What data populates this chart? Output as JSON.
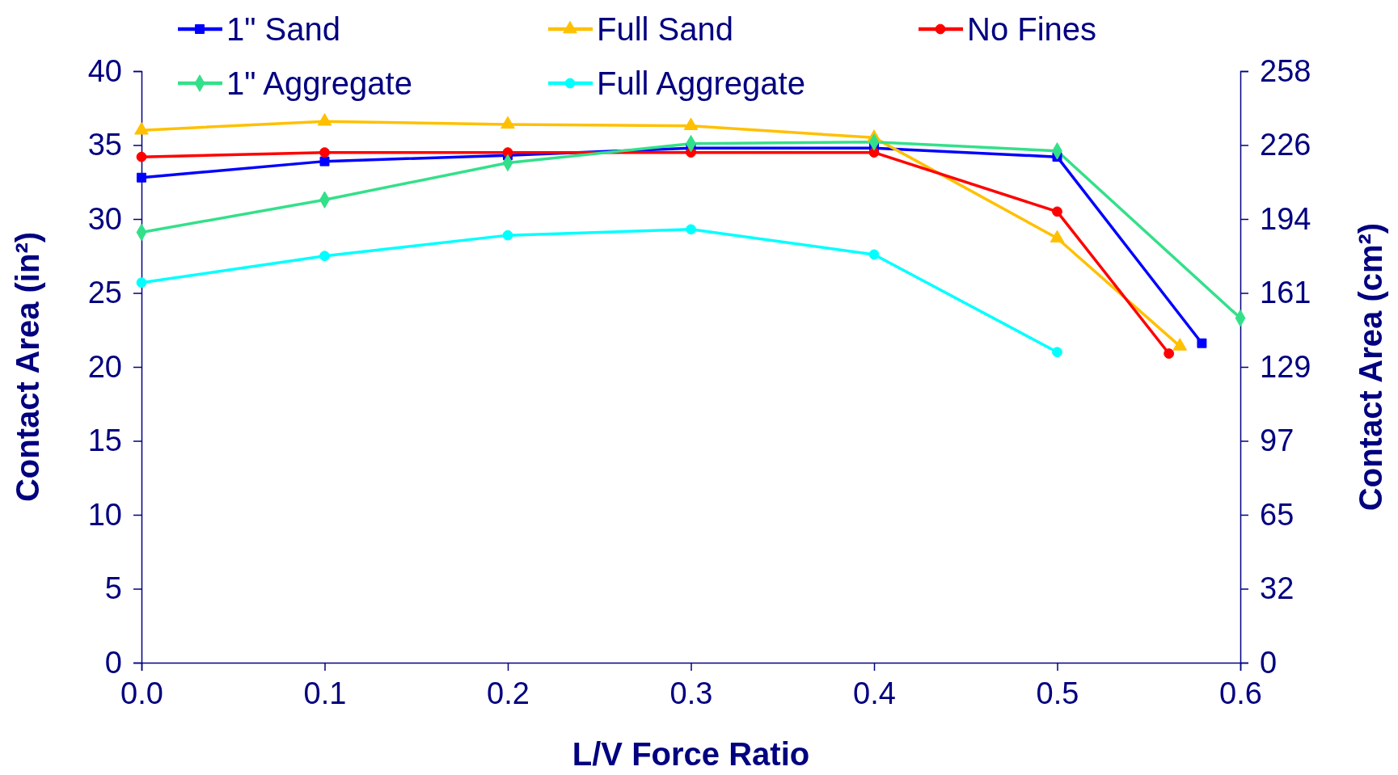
{
  "chart_data": {
    "type": "line",
    "xlabel": "L/V Force Ratio",
    "ylabel": "Contact Area (in²)",
    "y2label": "Contact Area (cm²)",
    "xlim": [
      0,
      0.6
    ],
    "xticks": [
      {
        "value": 0,
        "label": "0.0"
      },
      0.1,
      0.2,
      0.3,
      0.4,
      0.5,
      0.6
    ],
    "ylim": [
      0,
      40
    ],
    "yticks": [
      0,
      5,
      10,
      15,
      20,
      25,
      30,
      35,
      40
    ],
    "y2lim": [
      0,
      258.06
    ],
    "y2ticks": [
      0,
      {
        "value": 32.26,
        "label": "32"
      },
      {
        "value": 64.52,
        "label": "65"
      },
      {
        "value": 96.77,
        "label": "97"
      },
      {
        "value": 129.03,
        "label": "129"
      },
      {
        "value": 161.29,
        "label": "161"
      },
      {
        "value": 193.55,
        "label": "194"
      },
      {
        "value": 225.81,
        "label": "226"
      },
      {
        "value": 258.06,
        "label": "258"
      }
    ],
    "grid": false,
    "legend": "top",
    "line_style": "solid",
    "series": [
      {
        "name": "1\" Sand",
        "color": "#0000ff",
        "marker": "square",
        "x": [
          0,
          0.1,
          0.2,
          0.3,
          0.4,
          0.5,
          0.579
        ],
        "values": [
          32.8,
          33.9,
          34.3,
          34.8,
          34.8,
          34.2,
          21.6
        ]
      },
      {
        "name": "Full Sand",
        "color": "#ffc000",
        "marker": "triangle",
        "x": [
          0,
          0.1,
          0.2,
          0.3,
          0.4,
          0.5,
          0.567
        ],
        "values": [
          36.0,
          36.6,
          36.4,
          36.3,
          35.5,
          28.7,
          21.4
        ]
      },
      {
        "name": "No Fines",
        "color": "#ff0000",
        "marker": "circle",
        "x": [
          0,
          0.1,
          0.2,
          0.3,
          0.4,
          0.5,
          0.561
        ],
        "values": [
          34.2,
          34.5,
          34.5,
          34.5,
          34.5,
          30.5,
          20.9
        ]
      },
      {
        "name": "1\" Aggregate",
        "color": "#33e08a",
        "marker": "diamond",
        "x": [
          0,
          0.1,
          0.2,
          0.3,
          0.4,
          0.5,
          0.6
        ],
        "values": [
          29.1,
          31.3,
          33.8,
          35.1,
          35.2,
          34.6,
          23.3
        ]
      },
      {
        "name": "Full Aggregate",
        "color": "#00ffff",
        "marker": "circle",
        "x": [
          0,
          0.1,
          0.2,
          0.3,
          0.4,
          0.5
        ],
        "values": [
          25.7,
          27.5,
          28.9,
          29.3,
          27.6,
          21.0
        ]
      }
    ]
  }
}
